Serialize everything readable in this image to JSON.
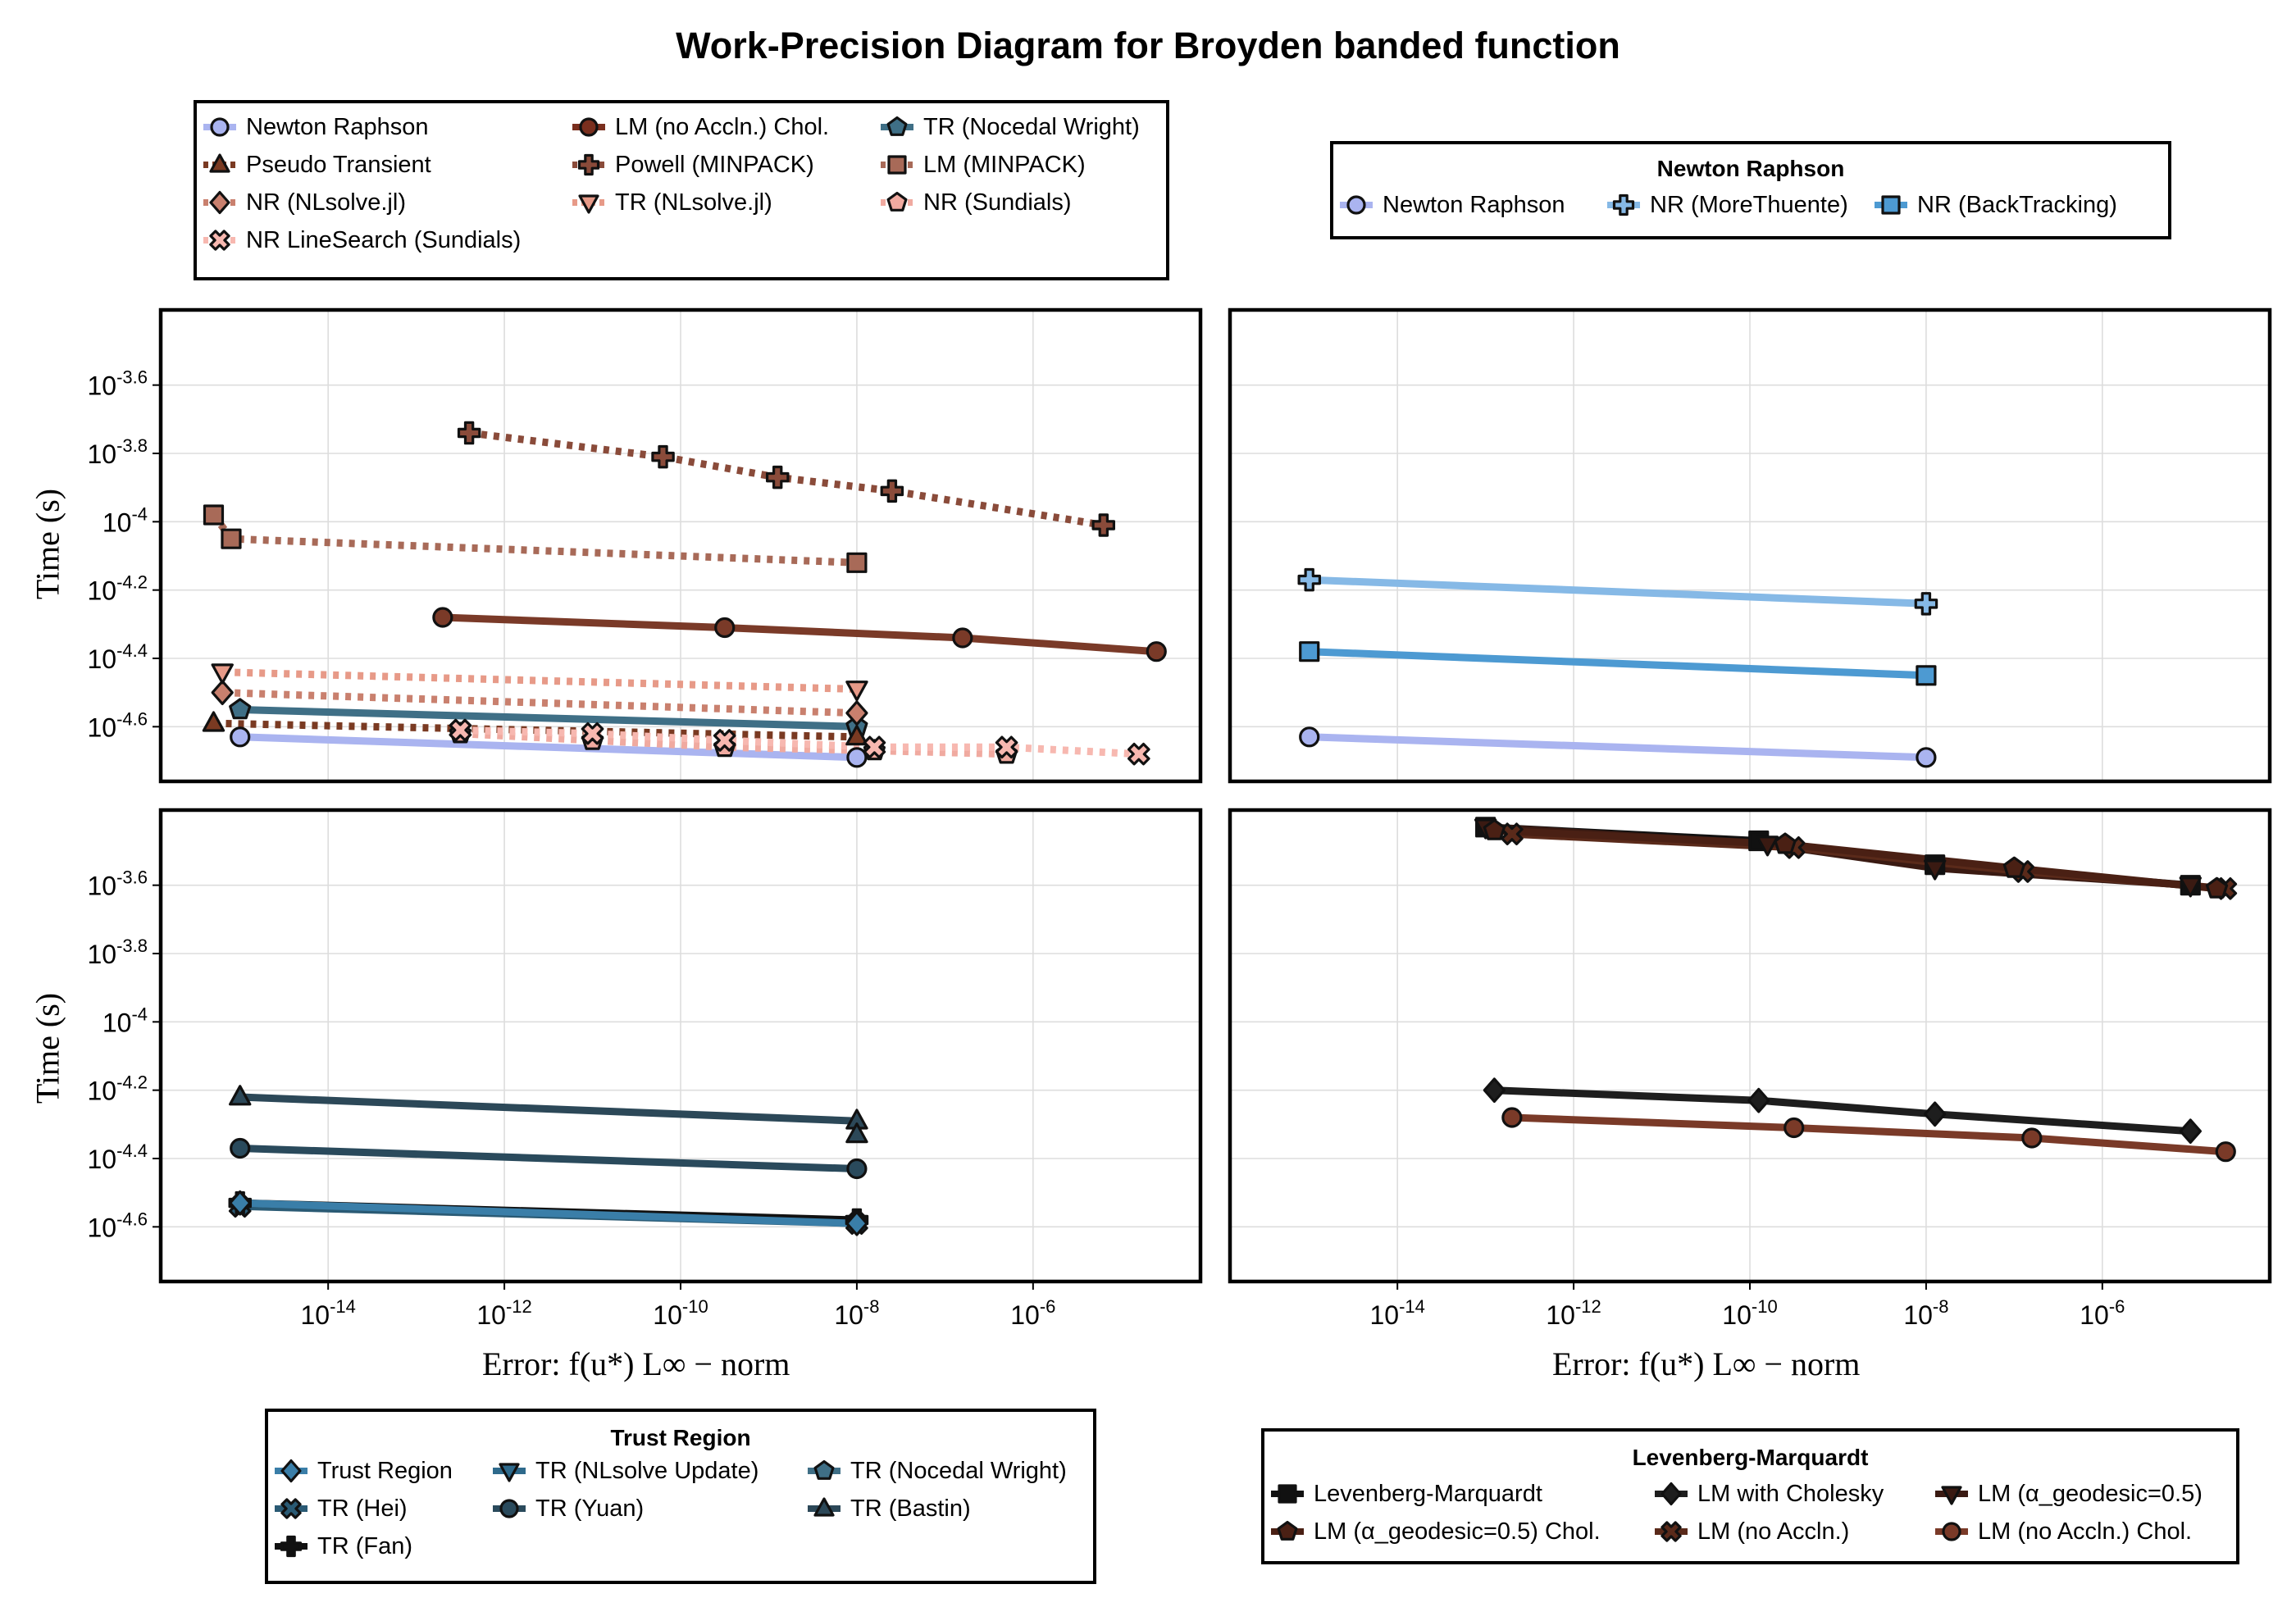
{
  "title": "Work-Precision Diagram for Broyden banded function",
  "ylabel": "Time (s)",
  "xlabel": "Error: f(u*) L∞ − norm",
  "colors": {
    "nr_blue": "#aab4f0",
    "brown": "#7a4130",
    "brown_dark": "#5a2a1a",
    "salmon": "#d97a6a",
    "pink": "#f0a8a0",
    "teal": "#3f6f86",
    "sky": "#7fb6e4",
    "sky2": "#58a0d8",
    "tr_dark": "#3a5262",
    "lm_black": "#1a1a1a"
  },
  "legends": {
    "top_left": {
      "title": "",
      "items": [
        {
          "label": "Newton Raphson",
          "marker": "circle",
          "color": "#aab4f0",
          "dash": false
        },
        {
          "label": "LM (no Accln.) Chol.",
          "marker": "circle",
          "color": "#7a2f1e",
          "dash": false
        },
        {
          "label": "TR (Nocedal Wright)",
          "marker": "pentagon",
          "color": "#3f6f86",
          "dash": false
        },
        {
          "label": "Pseudo Transient",
          "marker": "triangle",
          "color": "#7a3a22",
          "dash": true
        },
        {
          "label": "Powell (MINPACK)",
          "marker": "cross",
          "color": "#8a4b3a",
          "dash": true
        },
        {
          "label": "LM (MINPACK)",
          "marker": "square",
          "color": "#a86a58",
          "dash": true
        },
        {
          "label": "NR (NLsolve.jl)",
          "marker": "diamond",
          "color": "#c9806e",
          "dash": true
        },
        {
          "label": "TR (NLsolve.jl)",
          "marker": "triangle-down",
          "color": "#e79a88",
          "dash": true
        },
        {
          "label": "NR (Sundials)",
          "marker": "pentagon",
          "color": "#f0aaa0",
          "dash": true
        },
        {
          "label": "NR LineSearch (Sundials)",
          "marker": "xcross",
          "color": "#f7b8b0",
          "dash": true
        }
      ]
    },
    "top_right": {
      "title": "Newton Raphson",
      "items": [
        {
          "label": "Newton Raphson",
          "marker": "circle",
          "color": "#aab4f0",
          "dash": false
        },
        {
          "label": "NR (MoreThuente)",
          "marker": "cross",
          "color": "#86b9e6",
          "dash": false
        },
        {
          "label": "NR (BackTracking)",
          "marker": "square",
          "color": "#4d9ad2",
          "dash": false
        }
      ]
    },
    "bottom_left": {
      "title": "Trust Region",
      "items": [
        {
          "label": "Trust Region",
          "marker": "diamond",
          "color": "#3a7ea8",
          "dash": false
        },
        {
          "label": "TR (NLsolve Update)",
          "marker": "triangle-down",
          "color": "#2e6a8c",
          "dash": false
        },
        {
          "label": "TR (Nocedal Wright)",
          "marker": "pentagon",
          "color": "#3f6f86",
          "dash": false
        },
        {
          "label": "TR (Hei)",
          "marker": "xcross",
          "color": "#2a5a74",
          "dash": false
        },
        {
          "label": "TR (Yuan)",
          "marker": "circle",
          "color": "#2a4a5c",
          "dash": false
        },
        {
          "label": "TR (Bastin)",
          "marker": "triangle",
          "color": "#2c4858",
          "dash": false
        },
        {
          "label": "TR (Fan)",
          "marker": "cross",
          "color": "#111111",
          "dash": false
        }
      ]
    },
    "bottom_right": {
      "title": "Levenberg-Marquardt",
      "items": [
        {
          "label": "Levenberg-Marquardt",
          "marker": "square",
          "color": "#111111",
          "dash": false
        },
        {
          "label": "LM with Cholesky",
          "marker": "diamond",
          "color": "#1e1e1e",
          "dash": false
        },
        {
          "label": "LM (α_geodesic=0.5)",
          "marker": "triangle-down",
          "color": "#3a1a12",
          "dash": false
        },
        {
          "label": "LM (α_geodesic=0.5) Chol.",
          "marker": "pentagon",
          "color": "#4a2014",
          "dash": false
        },
        {
          "label": "LM (no Accln.)",
          "marker": "xcross",
          "color": "#5a2a1a",
          "dash": false
        },
        {
          "label": "LM (no Accln.) Chol.",
          "marker": "circle",
          "color": "#7a3a28",
          "dash": false
        }
      ]
    }
  },
  "chart_data": [
    {
      "type": "line",
      "panel": "top-left",
      "xscale": "log10",
      "yscale": "log10",
      "xlim": [
        -15.9,
        -4.1
      ],
      "ylim": [
        -4.76,
        -3.38
      ],
      "xticks": [
        -14,
        -12,
        -10,
        -8,
        -6
      ],
      "yticks": [
        -3.6,
        -3.8,
        -4,
        -4.2,
        -4.4,
        -4.6
      ],
      "xlabel": "",
      "ylabel": "Time (s)",
      "grid": true,
      "series": [
        {
          "name": "Newton Raphson",
          "color": "#aab4f0",
          "dash": false,
          "marker": "circle",
          "points": [
            [
              -15.0,
              -4.63
            ],
            [
              -8.0,
              -4.69
            ]
          ]
        },
        {
          "name": "LM (no Accln.) Chol.",
          "color": "#7a3a28",
          "dash": false,
          "marker": "circle",
          "points": [
            [
              -12.7,
              -4.28
            ],
            [
              -9.5,
              -4.31
            ],
            [
              -6.8,
              -4.34
            ],
            [
              -4.6,
              -4.38
            ]
          ]
        },
        {
          "name": "TR (Nocedal Wright)",
          "color": "#3f6f86",
          "dash": false,
          "marker": "pentagon",
          "points": [
            [
              -15.0,
              -4.55
            ],
            [
              -8.0,
              -4.6
            ]
          ]
        },
        {
          "name": "Pseudo Transient",
          "color": "#7a3a22",
          "dash": true,
          "marker": "triangle",
          "points": [
            [
              -15.3,
              -4.59
            ],
            [
              -8.0,
              -4.63
            ]
          ]
        },
        {
          "name": "Powell (MINPACK)",
          "color": "#8a4b3a",
          "dash": true,
          "marker": "cross",
          "points": [
            [
              -12.4,
              -3.74
            ],
            [
              -10.2,
              -3.81
            ],
            [
              -8.9,
              -3.87
            ],
            [
              -7.6,
              -3.91
            ],
            [
              -5.2,
              -4.01
            ]
          ]
        },
        {
          "name": "LM (MINPACK)",
          "color": "#a86a58",
          "dash": true,
          "marker": "square",
          "points": [
            [
              -15.3,
              -3.98
            ],
            [
              -15.1,
              -4.05
            ],
            [
              -8.0,
              -4.12
            ]
          ]
        },
        {
          "name": "NR (NLsolve.jl)",
          "color": "#c9806e",
          "dash": true,
          "marker": "diamond",
          "points": [
            [
              -15.2,
              -4.5
            ],
            [
              -8.0,
              -4.56
            ]
          ]
        },
        {
          "name": "TR (NLsolve.jl)",
          "color": "#e79a88",
          "dash": true,
          "marker": "triangle-down",
          "points": [
            [
              -15.2,
              -4.44
            ],
            [
              -8.0,
              -4.49
            ]
          ]
        },
        {
          "name": "NR (Sundials)",
          "color": "#f0aaa0",
          "dash": true,
          "marker": "pentagon",
          "points": [
            [
              -12.5,
              -4.62
            ],
            [
              -11.0,
              -4.64
            ],
            [
              -9.5,
              -4.66
            ],
            [
              -7.8,
              -4.67
            ],
            [
              -6.3,
              -4.68
            ]
          ]
        },
        {
          "name": "NR LineSearch (Sundials)",
          "color": "#f7b8b0",
          "dash": true,
          "marker": "xcross",
          "points": [
            [
              -12.5,
              -4.61
            ],
            [
              -11.0,
              -4.62
            ],
            [
              -9.5,
              -4.64
            ],
            [
              -7.8,
              -4.66
            ],
            [
              -6.3,
              -4.66
            ],
            [
              -4.8,
              -4.68
            ]
          ]
        }
      ]
    },
    {
      "type": "line",
      "panel": "top-right",
      "xscale": "log10",
      "yscale": "log10",
      "xlim": [
        -15.9,
        -4.1
      ],
      "ylim": [
        -4.76,
        -3.38
      ],
      "xticks": [
        -14,
        -12,
        -10,
        -8,
        -6
      ],
      "yticks": [
        -3.6,
        -3.8,
        -4,
        -4.2,
        -4.4,
        -4.6
      ],
      "grid": true,
      "series": [
        {
          "name": "Newton Raphson",
          "color": "#aab4f0",
          "dash": false,
          "marker": "circle",
          "points": [
            [
              -15.0,
              -4.63
            ],
            [
              -8.0,
              -4.69
            ]
          ]
        },
        {
          "name": "NR (MoreThuente)",
          "color": "#86b9e6",
          "dash": false,
          "marker": "cross",
          "points": [
            [
              -15.0,
              -4.17
            ],
            [
              -8.0,
              -4.24
            ]
          ]
        },
        {
          "name": "NR (BackTracking)",
          "color": "#4d9ad2",
          "dash": false,
          "marker": "square",
          "points": [
            [
              -15.0,
              -4.38
            ],
            [
              -8.0,
              -4.45
            ]
          ]
        }
      ]
    },
    {
      "type": "line",
      "panel": "bottom-left",
      "xscale": "log10",
      "yscale": "log10",
      "xlim": [
        -15.9,
        -4.1
      ],
      "ylim": [
        -4.76,
        -3.38
      ],
      "xticks": [
        -14,
        -12,
        -10,
        -8,
        -6
      ],
      "yticks": [
        -3.6,
        -3.8,
        -4,
        -4.2,
        -4.4,
        -4.6
      ],
      "xlabel": "Error: f(u*) L∞ − norm",
      "ylabel": "Time (s)",
      "grid": true,
      "series": [
        {
          "name": "TR (Bastin)",
          "color": "#2c4858",
          "dash": false,
          "marker": "triangle",
          "points": [
            [
              -15.0,
              -4.22
            ],
            [
              -8.0,
              -4.29
            ]
          ]
        },
        {
          "name": "TR (Bastin)",
          "color": "#2c4858",
          "dash": false,
          "marker": "triangle",
          "points": [
            [
              -8.0,
              -4.33
            ]
          ]
        },
        {
          "name": "TR (Yuan)",
          "color": "#2a4a5c",
          "dash": false,
          "marker": "circle",
          "points": [
            [
              -15.0,
              -4.37
            ],
            [
              -8.0,
              -4.43
            ]
          ]
        },
        {
          "name": "TR (Hei)",
          "color": "#2a5a74",
          "dash": false,
          "marker": "xcross",
          "points": [
            [
              -15.0,
              -4.54
            ],
            [
              -8.0,
              -4.59
            ]
          ]
        },
        {
          "name": "TR (Fan)",
          "color": "#111111",
          "dash": false,
          "marker": "cross",
          "points": [
            [
              -15.0,
              -4.53
            ],
            [
              -8.0,
              -4.58
            ]
          ]
        },
        {
          "name": "Trust Region",
          "color": "#3a7ea8",
          "dash": false,
          "marker": "diamond",
          "points": [
            [
              -15.0,
              -4.53
            ],
            [
              -8.0,
              -4.59
            ]
          ]
        }
      ]
    },
    {
      "type": "line",
      "panel": "bottom-right",
      "xscale": "log10",
      "yscale": "log10",
      "xlim": [
        -15.9,
        -4.1
      ],
      "ylim": [
        -4.76,
        -3.38
      ],
      "xticks": [
        -14,
        -12,
        -10,
        -8,
        -6
      ],
      "yticks": [
        -3.6,
        -3.8,
        -4,
        -4.2,
        -4.4,
        -4.6
      ],
      "xlabel": "Error: f(u*) L∞ − norm",
      "grid": true,
      "series": [
        {
          "name": "Levenberg-Marquardt",
          "color": "#111111",
          "dash": false,
          "marker": "square",
          "points": [
            [
              -13.0,
              -3.43
            ],
            [
              -9.9,
              -3.47
            ],
            [
              -7.9,
              -3.54
            ],
            [
              -5.0,
              -3.6
            ]
          ]
        },
        {
          "name": "LM (α_geodesic=0.5)",
          "color": "#3a1a12",
          "dash": false,
          "marker": "triangle-down",
          "points": [
            [
              -13.0,
              -3.43
            ],
            [
              -9.8,
              -3.48
            ],
            [
              -7.9,
              -3.55
            ],
            [
              -5.0,
              -3.6
            ]
          ]
        },
        {
          "name": "LM (no Accln.)",
          "color": "#5a2a1a",
          "dash": false,
          "marker": "xcross",
          "points": [
            [
              -12.7,
              -3.45
            ],
            [
              -9.5,
              -3.49
            ],
            [
              -6.9,
              -3.56
            ],
            [
              -4.6,
              -3.61
            ]
          ]
        },
        {
          "name": "LM (α_geodesic=0.5) Chol.",
          "color": "#4a2014",
          "dash": false,
          "marker": "pentagon",
          "points": [
            [
              -12.9,
              -3.44
            ],
            [
              -9.6,
              -3.48
            ],
            [
              -7.0,
              -3.55
            ],
            [
              -4.7,
              -3.61
            ]
          ]
        },
        {
          "name": "LM with Cholesky",
          "color": "#1e1e1e",
          "dash": false,
          "marker": "diamond",
          "points": [
            [
              -12.9,
              -4.2
            ],
            [
              -9.9,
              -4.23
            ],
            [
              -7.9,
              -4.27
            ],
            [
              -5.0,
              -4.32
            ]
          ]
        },
        {
          "name": "LM (no Accln.) Chol.",
          "color": "#7a3a28",
          "dash": false,
          "marker": "circle",
          "points": [
            [
              -12.7,
              -4.28
            ],
            [
              -9.5,
              -4.31
            ],
            [
              -6.8,
              -4.34
            ],
            [
              -4.6,
              -4.38
            ]
          ]
        }
      ]
    }
  ]
}
